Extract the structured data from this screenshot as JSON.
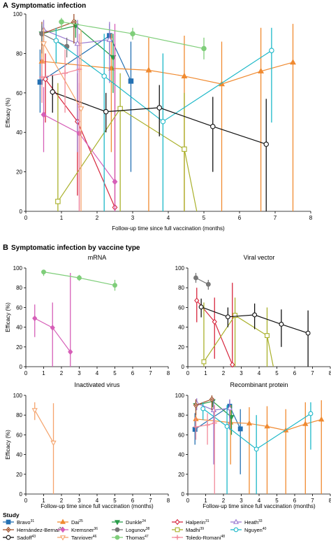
{
  "figure": {
    "panel_a": {
      "letter": "A",
      "title": "Symptomatic infection"
    },
    "panel_b": {
      "letter": "B",
      "title": "Symptomatic infection by vaccine type"
    },
    "legend_title": "Study"
  },
  "studies": [
    {
      "name": "Bravo",
      "ref": "31",
      "color": "#2471b3",
      "marker": "square",
      "fill": true
    },
    {
      "name": "Dai",
      "ref": "25",
      "color": "#f08a30",
      "marker": "triangle-up",
      "fill": true
    },
    {
      "name": "Dunkle",
      "ref": "24",
      "color": "#2a9d4a",
      "marker": "triangle-down",
      "fill": true
    },
    {
      "name": "Halperin",
      "ref": "31",
      "color": "#d7263d",
      "marker": "diamond",
      "fill": false
    },
    {
      "name": "Heath",
      "ref": "33",
      "color": "#9a7ad0",
      "marker": "triangle-up",
      "fill": false
    },
    {
      "name": "Hernández-Bernal",
      "ref": "34",
      "color": "#a0522d",
      "marker": "diamond-x",
      "fill": false
    },
    {
      "name": "Kremsner",
      "ref": "36",
      "color": "#d65fb8",
      "marker": "diamond",
      "fill": true
    },
    {
      "name": "Logunov",
      "ref": "38",
      "color": "#777777",
      "marker": "circle",
      "fill": true
    },
    {
      "name": "Madhi",
      "ref": "39",
      "color": "#a9b02a",
      "marker": "square",
      "fill": false
    },
    {
      "name": "Nguyen",
      "ref": "40",
      "color": "#1cb8c8",
      "marker": "circle",
      "fill": false
    },
    {
      "name": "Sadoff",
      "ref": "43",
      "color": "#111111",
      "marker": "circle",
      "fill": false
    },
    {
      "name": "Tanriover",
      "ref": "46",
      "color": "#f5a36b",
      "marker": "triangle-down",
      "fill": false
    },
    {
      "name": "Thomas",
      "ref": "47",
      "color": "#7fce7a",
      "marker": "circle",
      "fill": true
    },
    {
      "name": "Toledo-Romani",
      "ref": "48",
      "color": "#f28a9a",
      "marker": "plus",
      "fill": false
    }
  ],
  "chart_data": [
    {
      "id": "A",
      "type": "line",
      "title": "Symptomatic infection",
      "xlabel": "Follow-up time since full vaccination (months)",
      "ylabel": "Efficacy (%)",
      "xlim": [
        0,
        8
      ],
      "ylim": [
        0,
        100
      ],
      "xticks": [
        0,
        1,
        2,
        3,
        4,
        5,
        6,
        7,
        8
      ],
      "yticks": [
        0,
        20,
        40,
        60,
        80,
        100
      ],
      "series": [
        {
          "study": "Bravo",
          "points": [
            [
              0.4,
              65.5,
              50,
              82
            ],
            [
              2.35,
              89,
              77,
              95
            ],
            [
              2.95,
              66,
              20,
              86
            ]
          ]
        },
        {
          "study": "Dai",
          "points": [
            [
              0.45,
              76,
              67,
              83
            ],
            [
              2.4,
              72.5,
              30,
              90
            ],
            [
              3.45,
              71.5,
              0,
              88
            ],
            [
              4.45,
              68.5,
              0,
              89
            ],
            [
              5.5,
              64.5,
              0,
              86
            ],
            [
              6.6,
              71,
              0,
              93
            ],
            [
              7.5,
              75.5,
              0,
              95
            ]
          ]
        },
        {
          "study": "Dunkle",
          "points": [
            [
              0.45,
              90,
              84,
              94
            ],
            [
              1.4,
              94,
              88,
              97
            ],
            [
              2.45,
              78,
              60,
              90
            ]
          ]
        },
        {
          "study": "Halperin",
          "points": [
            [
              0.55,
              67,
              45,
              80
            ],
            [
              1.45,
              45.5,
              8,
              70
            ],
            [
              2.5,
              2,
              0,
              85
            ]
          ]
        },
        {
          "study": "Heath",
          "points": [
            [
              0.5,
              92,
              85,
              97
            ],
            [
              1.45,
              85,
              30,
              97
            ],
            [
              2.35,
              87,
              65,
              96
            ]
          ]
        },
        {
          "study": "Hernández-Bernal",
          "points": [
            [
              0.45,
              90,
              80,
              96
            ],
            [
              1.35,
              96,
              85,
              100
            ]
          ]
        },
        {
          "study": "Kremsner",
          "points": [
            [
              0.5,
              49,
              30,
              63
            ],
            [
              1.5,
              39.5,
              0,
              65
            ],
            [
              2.5,
              15,
              0,
              95
            ]
          ]
        },
        {
          "study": "Logunov",
          "points": [
            [
              0.45,
              90,
              85,
              95
            ],
            [
              1.15,
              83.5,
              78,
              88
            ]
          ]
        },
        {
          "study": "Madhi",
          "points": [
            [
              0.9,
              5,
              0,
              65
            ],
            [
              2.65,
              52,
              0,
              70
            ],
            [
              4.45,
              31.5,
              0,
              60
            ],
            [
              4.8,
              0,
              0,
              0
            ]
          ]
        },
        {
          "study": "Nguyen",
          "points": [
            [
              0.85,
              86.5,
              75,
              93
            ],
            [
              2.2,
              68.5,
              0,
              90
            ],
            [
              3.85,
              45.5,
              0,
              80
            ],
            [
              6.9,
              81.5,
              45,
              93
            ]
          ]
        },
        {
          "study": "Sadoff",
          "points": [
            [
              0.75,
              60.5,
              50,
              69
            ],
            [
              2.25,
              50.5,
              40,
              60
            ],
            [
              3.75,
              52.5,
              38,
              64
            ],
            [
              5.25,
              43,
              20,
              58
            ],
            [
              6.75,
              34,
              0,
              57
            ]
          ]
        },
        {
          "study": "Tanriover",
          "points": [
            [
              0.5,
              85,
              75,
              93
            ],
            [
              1.55,
              52,
              0,
              92
            ]
          ]
        },
        {
          "study": "Thomas",
          "points": [
            [
              1,
              96,
              92,
              98
            ],
            [
              3,
              90,
              87,
              93
            ],
            [
              5,
              82.5,
              77,
              88
            ]
          ]
        },
        {
          "study": "Toledo-Romani",
          "points": [
            [
              0.45,
              68,
              55,
              78
            ],
            [
              1.1,
              70,
              50,
              82
            ],
            [
              1.5,
              72,
              0,
              90
            ]
          ]
        }
      ]
    },
    {
      "id": "B1",
      "type": "line",
      "title": "mRNA",
      "xlabel": "",
      "ylabel": "Efficacy (%)",
      "xlim": [
        0,
        8
      ],
      "ylim": [
        0,
        100
      ],
      "xticks": [
        0,
        1,
        2,
        3,
        4,
        5,
        6,
        7,
        8
      ],
      "yticks": [
        0,
        20,
        40,
        60,
        80,
        100
      ],
      "series": [
        {
          "study": "Kremsner",
          "points": [
            [
              0.5,
              49,
              30,
              63
            ],
            [
              1.5,
              39.5,
              0,
              65
            ],
            [
              2.5,
              15,
              0,
              95
            ]
          ]
        },
        {
          "study": "Thomas",
          "points": [
            [
              1,
              96,
              92,
              98
            ],
            [
              3,
              90,
              87,
              93
            ],
            [
              5,
              82.5,
              77,
              88
            ]
          ]
        }
      ]
    },
    {
      "id": "B2",
      "type": "line",
      "title": "Viral vector",
      "xlabel": "",
      "ylabel": "",
      "xlim": [
        0,
        8
      ],
      "ylim": [
        0,
        100
      ],
      "xticks": [
        0,
        1,
        2,
        3,
        4,
        5,
        6,
        7,
        8
      ],
      "yticks": [
        0,
        20,
        40,
        60,
        80,
        100
      ],
      "series": [
        {
          "study": "Logunov",
          "points": [
            [
              0.45,
              90,
              85,
              95
            ],
            [
              1.15,
              83.5,
              78,
              88
            ]
          ]
        },
        {
          "study": "Halperin",
          "points": [
            [
              0.5,
              67,
              45,
              80
            ],
            [
              1.5,
              45.5,
              8,
              70
            ],
            [
              2.5,
              2,
              0,
              85
            ]
          ]
        },
        {
          "study": "Madhi",
          "points": [
            [
              0.9,
              5,
              0,
              65
            ],
            [
              2.65,
              52,
              0,
              70
            ],
            [
              4.45,
              31.5,
              0,
              60
            ],
            [
              4.8,
              0,
              0,
              0
            ]
          ]
        },
        {
          "study": "Sadoff",
          "points": [
            [
              0.75,
              60.5,
              50,
              69
            ],
            [
              2.25,
              50.5,
              40,
              60
            ],
            [
              3.75,
              52.5,
              38,
              64
            ],
            [
              5.25,
              43,
              20,
              58
            ],
            [
              6.75,
              34,
              0,
              57
            ]
          ]
        }
      ]
    },
    {
      "id": "B3",
      "type": "line",
      "title": "Inactivated virus",
      "xlabel": "Follow-up time since full vaccination (months)",
      "ylabel": "Efficacy (%)",
      "xlim": [
        0,
        8
      ],
      "ylim": [
        0,
        100
      ],
      "xticks": [
        0,
        1,
        2,
        3,
        4,
        5,
        6,
        7,
        8
      ],
      "yticks": [
        0,
        20,
        40,
        60,
        80,
        100
      ],
      "series": [
        {
          "study": "Tanriover",
          "points": [
            [
              0.5,
              85,
              75,
              93
            ],
            [
              1.55,
              52,
              0,
              92
            ]
          ]
        }
      ]
    },
    {
      "id": "B4",
      "type": "line",
      "title": "Recombinant protein",
      "xlabel": "Follow-up time since full vaccination (months)",
      "ylabel": "",
      "xlim": [
        0,
        8
      ],
      "ylim": [
        0,
        100
      ],
      "xticks": [
        0,
        1,
        2,
        3,
        4,
        5,
        6,
        7,
        8
      ],
      "yticks": [
        0,
        20,
        40,
        60,
        80,
        100
      ],
      "series": [
        {
          "study": "Bravo",
          "points": [
            [
              0.4,
              65.5,
              50,
              82
            ],
            [
              2.35,
              89,
              77,
              95
            ],
            [
              2.95,
              66,
              20,
              86
            ]
          ]
        },
        {
          "study": "Dai",
          "points": [
            [
              0.45,
              76,
              67,
              83
            ],
            [
              2.4,
              72.5,
              30,
              90
            ],
            [
              3.45,
              71.5,
              0,
              88
            ],
            [
              4.45,
              68.5,
              0,
              89
            ],
            [
              5.5,
              64.5,
              0,
              86
            ],
            [
              6.6,
              71,
              0,
              93
            ],
            [
              7.5,
              75.5,
              0,
              95
            ]
          ]
        },
        {
          "study": "Dunkle",
          "points": [
            [
              0.45,
              90,
              84,
              94
            ],
            [
              1.4,
              94,
              88,
              97
            ],
            [
              2.45,
              78,
              60,
              90
            ]
          ]
        },
        {
          "study": "Heath",
          "points": [
            [
              0.5,
              92,
              85,
              97
            ],
            [
              1.45,
              85,
              30,
              97
            ],
            [
              2.35,
              87,
              65,
              96
            ]
          ]
        },
        {
          "study": "Hernández-Bernal",
          "points": [
            [
              0.45,
              90,
              80,
              96
            ],
            [
              1.35,
              96,
              85,
              100
            ]
          ]
        },
        {
          "study": "Nguyen",
          "points": [
            [
              0.85,
              86.5,
              75,
              93
            ],
            [
              2.2,
              68.5,
              0,
              90
            ],
            [
              3.85,
              45.5,
              0,
              80
            ],
            [
              6.9,
              81.5,
              45,
              93
            ]
          ]
        },
        {
          "study": "Toledo-Romani",
          "points": [
            [
              0.45,
              68,
              55,
              78
            ],
            [
              1.1,
              70,
              50,
              82
            ],
            [
              1.5,
              72,
              0,
              90
            ]
          ]
        }
      ]
    }
  ]
}
